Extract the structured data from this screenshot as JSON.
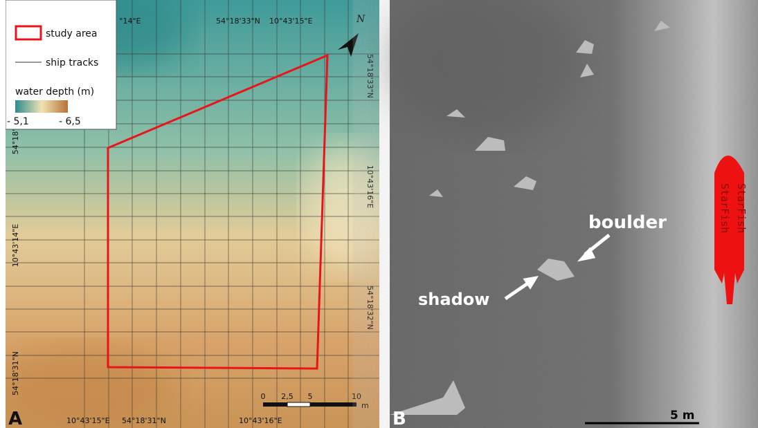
{
  "panel_a": {
    "label": "A",
    "legend": {
      "study_area": "study area",
      "ship_tracks": "ship tracks",
      "depth_title": "water depth (m)",
      "depth_min": "- 5,1",
      "depth_max": "- 6,5"
    },
    "north": "N",
    "coords_top": [
      "°14\"E",
      "54°18'33\"N",
      "10°43'15\"E"
    ],
    "coords_right": [
      "54°18'33\"N",
      "10°43'16\"E",
      "54°18'32\"N"
    ],
    "coords_left": [
      "54°18'",
      "10°43'14\"E",
      "54°18'31\"N"
    ],
    "coords_bottom": [
      "10°43'15\"E",
      "54°18'31\"N",
      "10°43'16\"E"
    ],
    "scale_labels": [
      "0",
      "2,5",
      "5",
      "10"
    ],
    "scale_unit": "m"
  },
  "panel_b": {
    "label": "B",
    "boulder": "boulder",
    "shadow": "shadow",
    "scale_label": "5 m",
    "ship_label": "StarFish"
  }
}
